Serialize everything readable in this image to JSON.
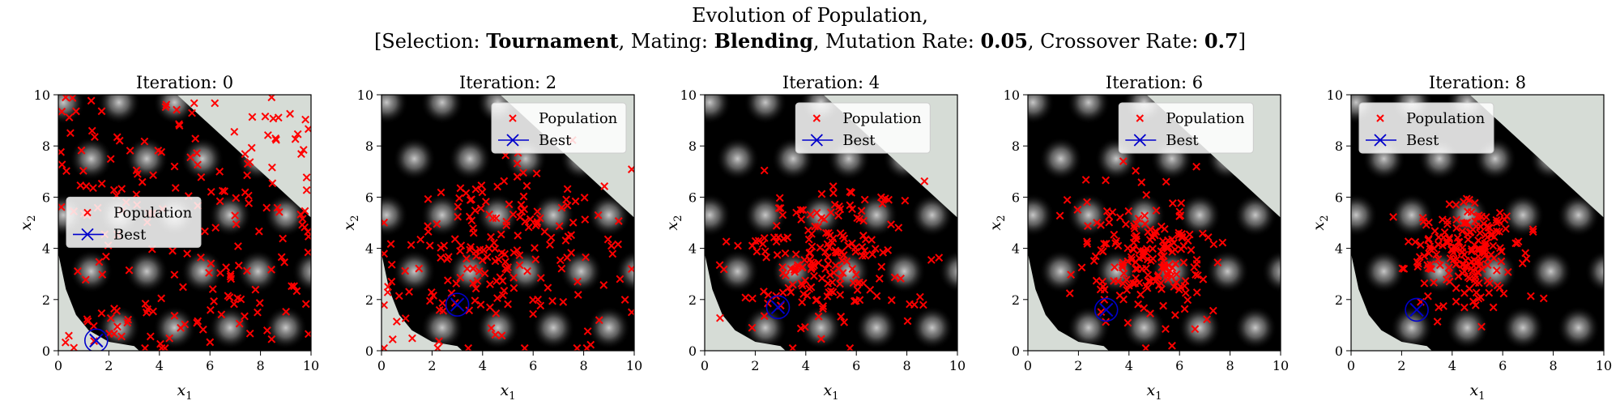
{
  "title": {
    "line1": "Evolution of Population,",
    "open": "[Selection: ",
    "selection": "Tournament",
    "mating_label": ", Mating: ",
    "mating": "Blending",
    "mutation_label": ", Mutation Rate: ",
    "mutation_rate": "0.05",
    "crossover_label": ", Crossover Rate: ",
    "crossover_rate": "0.7",
    "close": "]"
  },
  "colors": {
    "population": "#ff0000",
    "best": "#0000cc",
    "background_field": "#000000",
    "infeasible": "#d6dcd6"
  },
  "chart_data": [
    {
      "type": "scatter",
      "title": "Iteration: 0",
      "xlabel": "x1",
      "ylabel": "x2",
      "xlim": [
        0,
        10
      ],
      "ylim": [
        0,
        10
      ],
      "xticks": [
        0,
        2,
        4,
        6,
        8,
        10
      ],
      "yticks": [
        0,
        2,
        4,
        6,
        8,
        10
      ],
      "legend_position": "center-left",
      "series": [
        {
          "name": "Population",
          "marker": "x",
          "spread": "uniform",
          "cx": 5,
          "cy": 5,
          "sx": 3,
          "sy": 3,
          "count": 200
        },
        {
          "name": "Best",
          "marker": "x-circle",
          "x": [
            1.5
          ],
          "y": [
            0.4
          ]
        }
      ]
    },
    {
      "type": "scatter",
      "title": "Iteration: 2",
      "xlabel": "x1",
      "ylabel": "x2",
      "xlim": [
        0,
        10
      ],
      "ylim": [
        0,
        10
      ],
      "xticks": [
        0,
        2,
        4,
        6,
        8,
        10
      ],
      "yticks": [
        0,
        2,
        4,
        6,
        8,
        10
      ],
      "legend_position": "upper-right",
      "series": [
        {
          "name": "Population",
          "marker": "x",
          "spread": "normal",
          "cx": 4.6,
          "cy": 4,
          "sx": 2.2,
          "sy": 1.9,
          "count": 200
        },
        {
          "name": "Best",
          "marker": "x-circle",
          "x": [
            3.0
          ],
          "y": [
            1.8
          ]
        }
      ]
    },
    {
      "type": "scatter",
      "title": "Iteration: 4",
      "xlabel": "x1",
      "ylabel": "x2",
      "xlim": [
        0,
        10
      ],
      "ylim": [
        0,
        10
      ],
      "xticks": [
        0,
        2,
        4,
        6,
        8,
        10
      ],
      "yticks": [
        0,
        2,
        4,
        6,
        8,
        10
      ],
      "legend_position": "upper-center",
      "series": [
        {
          "name": "Population",
          "marker": "x",
          "spread": "normal",
          "cx": 4.7,
          "cy": 3.7,
          "sx": 1.6,
          "sy": 1.5,
          "count": 200
        },
        {
          "name": "Best",
          "marker": "x-circle",
          "x": [
            2.9
          ],
          "y": [
            1.7
          ]
        }
      ]
    },
    {
      "type": "scatter",
      "title": "Iteration: 6",
      "xlabel": "x1",
      "ylabel": "x2",
      "xlim": [
        0,
        10
      ],
      "ylim": [
        0,
        10
      ],
      "xticks": [
        0,
        2,
        4,
        6,
        8,
        10
      ],
      "yticks": [
        0,
        2,
        4,
        6,
        8,
        10
      ],
      "legend_position": "upper-center",
      "series": [
        {
          "name": "Population",
          "marker": "x",
          "spread": "normal",
          "cx": 4.6,
          "cy": 3.7,
          "sx": 1.3,
          "sy": 1.3,
          "count": 200
        },
        {
          "name": "Best",
          "marker": "x-circle",
          "x": [
            3.1
          ],
          "y": [
            1.6
          ]
        }
      ]
    },
    {
      "type": "scatter",
      "title": "Iteration: 8",
      "xlabel": "x1",
      "ylabel": "x2",
      "xlim": [
        0,
        10
      ],
      "ylim": [
        0,
        10
      ],
      "xticks": [
        0,
        2,
        4,
        6,
        8,
        10
      ],
      "yticks": [
        0,
        2,
        4,
        6,
        8,
        10
      ],
      "legend_position": "upper-left",
      "series": [
        {
          "name": "Population",
          "marker": "x",
          "spread": "normal",
          "cx": 4.6,
          "cy": 3.7,
          "sx": 1.0,
          "sy": 1.0,
          "count": 200
        },
        {
          "name": "Best",
          "marker": "x-circle",
          "x": [
            2.6
          ],
          "y": [
            1.6
          ]
        }
      ]
    }
  ]
}
